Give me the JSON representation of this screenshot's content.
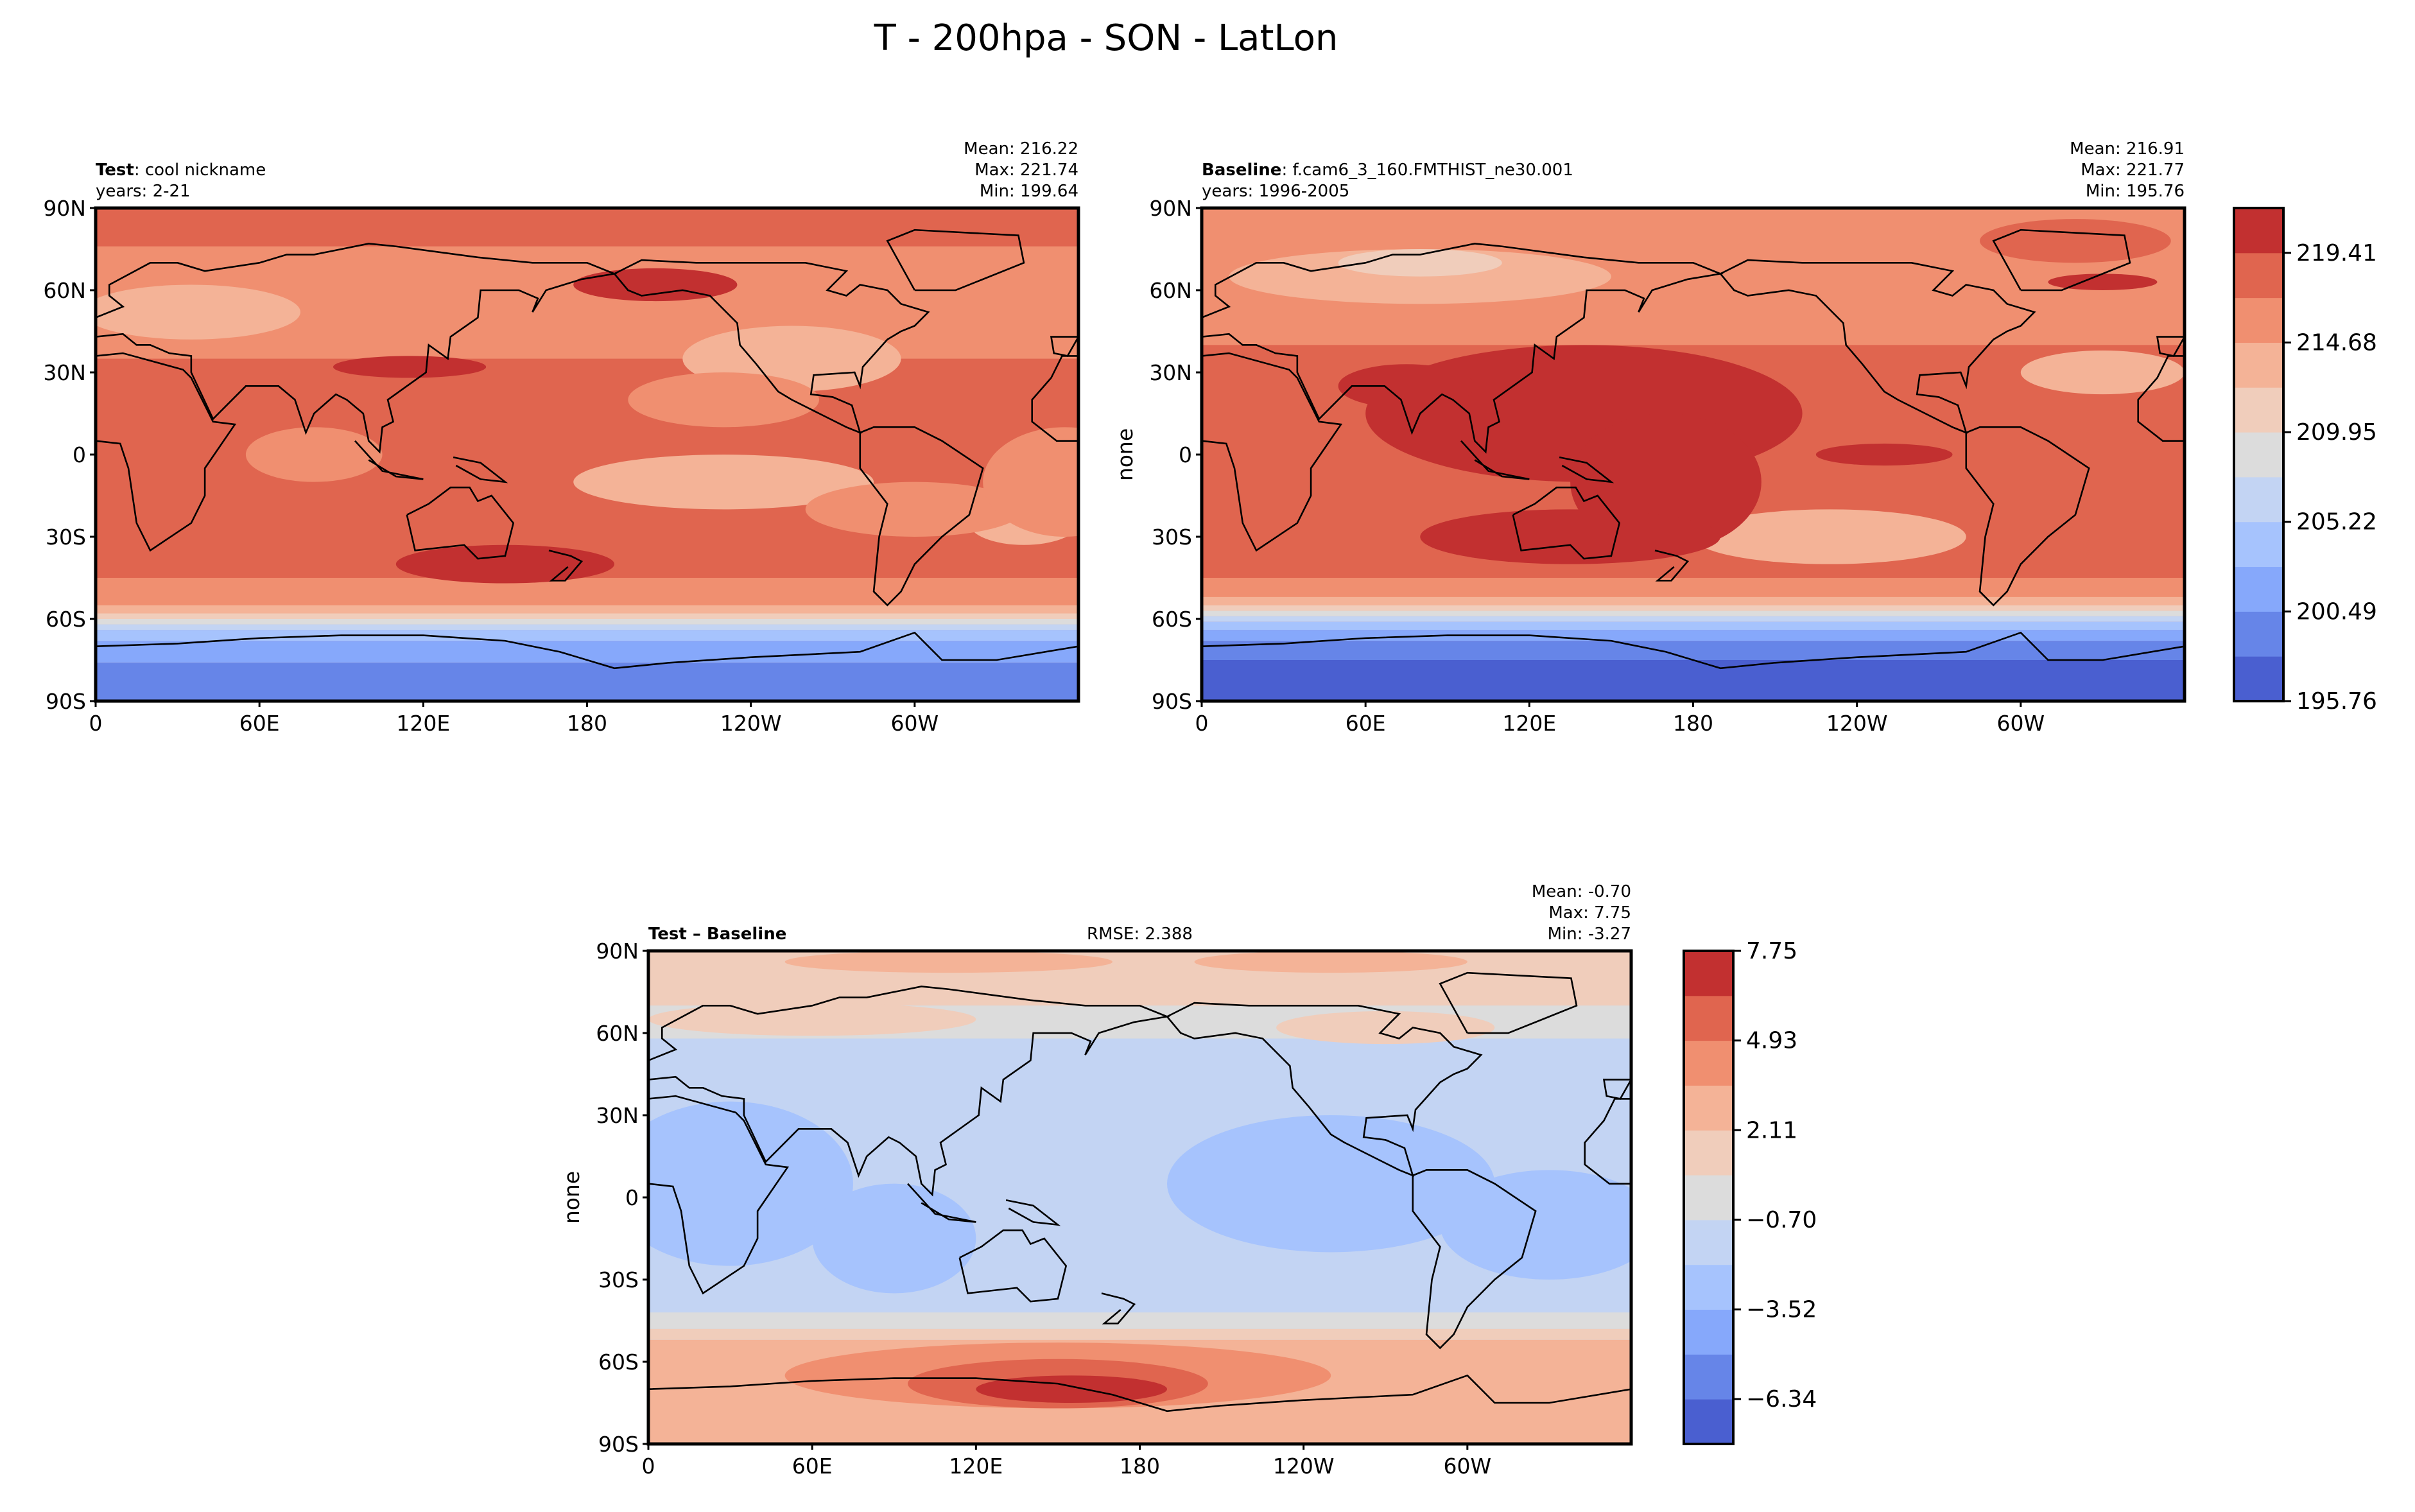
{
  "title": "T - 200hpa - SON - LatLon",
  "chart_data": [
    {
      "type": "heatmap",
      "panel": "test",
      "label_bold": "Test",
      "label_rest": ": cool nickname",
      "years": "years: 2-21",
      "stats": {
        "mean": "Mean: 216.22",
        "max": "Max: 221.74",
        "min": "Min: 199.64"
      },
      "ylabel": "",
      "x_ticks": [
        "0",
        "60E",
        "120E",
        "180",
        "120W",
        "60W"
      ],
      "y_ticks": [
        "90N",
        "60N",
        "30N",
        "0",
        "30S",
        "60S",
        "90S"
      ]
    },
    {
      "type": "heatmap",
      "panel": "baseline",
      "label_bold": "Baseline",
      "label_rest": ": f.cam6_3_160.FMTHIST_ne30.001",
      "years": "years: 1996-2005",
      "stats": {
        "mean": "Mean: 216.91",
        "max": "Max: 221.77",
        "min": "Min: 195.76"
      },
      "ylabel": "none",
      "x_ticks": [
        "0",
        "60E",
        "120E",
        "180",
        "120W",
        "60W"
      ],
      "y_ticks": [
        "90N",
        "60N",
        "30N",
        "0",
        "30S",
        "60S",
        "90S"
      ],
      "colorbar": {
        "range": [
          195.76,
          221.77
        ],
        "ticks": [
          "195.76",
          "200.49",
          "205.22",
          "209.95",
          "214.68",
          "219.41"
        ],
        "colors": [
          "#4a5fd0",
          "#6685e8",
          "#86a8fb",
          "#a6c3fd",
          "#c3d4f3",
          "#dcdcdc",
          "#f0cdbb",
          "#f4b397",
          "#f08f70",
          "#e0654f",
          "#c23030"
        ]
      }
    },
    {
      "type": "heatmap",
      "panel": "difference",
      "label_bold": "Test – Baseline",
      "rmse": "RMSE: 2.388",
      "stats": {
        "mean": "Mean: -0.70",
        "max": "Max:  7.75",
        "min": "Min: -3.27"
      },
      "ylabel": "none",
      "x_ticks": [
        "0",
        "60E",
        "120E",
        "180",
        "120W",
        "60W"
      ],
      "y_ticks": [
        "90N",
        "60N",
        "30N",
        "0",
        "30S",
        "60S",
        "90S"
      ],
      "colorbar": {
        "range": [
          -7.75,
          7.75
        ],
        "ticks": [
          "7.75",
          "4.93",
          "2.11",
          "−0.70",
          "−3.52",
          "−6.34"
        ],
        "colors": [
          "#4a5fd0",
          "#6685e8",
          "#86a8fb",
          "#a6c3fd",
          "#c3d4f3",
          "#dcdcdc",
          "#f0cdbb",
          "#f4b397",
          "#f08f70",
          "#e0654f",
          "#c23030"
        ]
      }
    }
  ]
}
